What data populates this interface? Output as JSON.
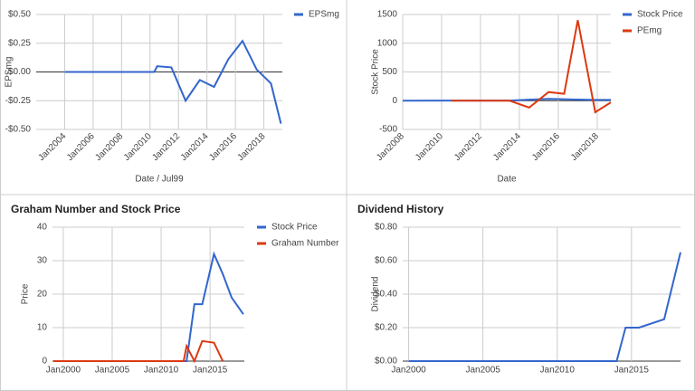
{
  "chart_data": [
    {
      "type": "line",
      "xlabel": "Date / Jul99",
      "ylabel": "EPSmg",
      "x": [
        2004,
        2010.3,
        2010.5,
        2011.5,
        2012.5,
        2013.5,
        2014.5,
        2015.5,
        2016.5,
        2017.5,
        2018.5,
        2019.2
      ],
      "series": [
        {
          "name": "EPSmg",
          "color": "#3366cc",
          "values": [
            0,
            0,
            0.05,
            0.04,
            -0.25,
            -0.07,
            -0.13,
            0.11,
            0.27,
            0.02,
            -0.1,
            -0.45
          ]
        }
      ],
      "xlim": [
        2002,
        2019.3
      ],
      "xticks": [
        {
          "value": 2004,
          "label": "Jan2004"
        },
        {
          "value": 2006,
          "label": "Jan2006"
        },
        {
          "value": 2008,
          "label": "Jan2008"
        },
        {
          "value": 2010,
          "label": "Jan2010"
        },
        {
          "value": 2012,
          "label": "Jan2012"
        },
        {
          "value": 2014,
          "label": "Jan2014"
        },
        {
          "value": 2016,
          "label": "Jan2016"
        },
        {
          "value": 2018,
          "label": "Jan2018"
        }
      ],
      "ylim": [
        -0.5,
        0.5
      ],
      "yticks": [
        {
          "value": -0.5,
          "label": "-$0.50"
        },
        {
          "value": -0.25,
          "label": "-$0.25"
        },
        {
          "value": 0,
          "label": "$0.00"
        },
        {
          "value": 0.25,
          "label": "$0.25"
        },
        {
          "value": 0.5,
          "label": "$0.50"
        }
      ],
      "grid": true
    },
    {
      "type": "line",
      "xlabel": "Date",
      "ylabel": "Stock Price",
      "x": [
        2008,
        2010.5,
        2013.5,
        2014.5,
        2015.5,
        2016.3,
        2017,
        2017.9,
        2018.7
      ],
      "series": [
        {
          "name": "Stock Price",
          "color": "#3366cc",
          "values": [
            0,
            1,
            2,
            17,
            32,
            26,
            19,
            14,
            14
          ]
        },
        {
          "name": "PEmg",
          "color": "#dc3912",
          "values": [
            null,
            0,
            0,
            -120,
            150,
            120,
            1400,
            -200,
            -30
          ]
        }
      ],
      "xlim": [
        2008,
        2018.7
      ],
      "xticks": [
        {
          "value": 2008,
          "label": "Jan2008"
        },
        {
          "value": 2010,
          "label": "Jan2010"
        },
        {
          "value": 2012,
          "label": "Jan2012"
        },
        {
          "value": 2014,
          "label": "Jan2014"
        },
        {
          "value": 2016,
          "label": "Jan2016"
        },
        {
          "value": 2018,
          "label": "Jan2018"
        }
      ],
      "ylim": [
        -500,
        1500
      ],
      "yticks": [
        -500,
        0,
        500,
        1000,
        1500
      ],
      "grid": true
    },
    {
      "type": "line",
      "title": "Graham Number and Stock Price",
      "ylabel": "Price",
      "x": [
        1999,
        2012.3,
        2012.6,
        2013.4,
        2014.2,
        2015.4,
        2016.3,
        2017.2,
        2018.4
      ],
      "series": [
        {
          "name": "Stock Price",
          "color": "#3366cc",
          "values": [
            0,
            0,
            0,
            17,
            17,
            32,
            26,
            19,
            14
          ]
        },
        {
          "name": "Graham Number",
          "color": "#dc3912",
          "values": [
            0,
            0,
            4.5,
            0,
            6,
            5.5,
            0,
            null,
            null
          ]
        }
      ],
      "xlim": [
        1998.9,
        2018.5
      ],
      "xticks": [
        {
          "value": 2000,
          "label": "Jan2000"
        },
        {
          "value": 2005,
          "label": "Jan2005"
        },
        {
          "value": 2010,
          "label": "Jan2010"
        },
        {
          "value": 2015,
          "label": "Jan2015"
        }
      ],
      "ylim": [
        0,
        40
      ],
      "yticks": [
        0,
        10,
        20,
        30,
        40
      ],
      "grid": true
    },
    {
      "type": "line",
      "title": "Dividend History",
      "ylabel": "Dividend",
      "x": [
        2000,
        2014,
        2014.6,
        2015.5,
        2017.2,
        2018.3
      ],
      "series": [
        {
          "name": "Dividend",
          "color": "#3366cc",
          "values": [
            0,
            0,
            0.2,
            0.2,
            0.25,
            0.65
          ]
        }
      ],
      "legend": false,
      "xlim": [
        1999.6,
        2018.3
      ],
      "xticks": [
        {
          "value": 2000,
          "label": "Jan2000"
        },
        {
          "value": 2005,
          "label": "Jan2005"
        },
        {
          "value": 2010,
          "label": "Jan2010"
        },
        {
          "value": 2015,
          "label": "Jan2015"
        }
      ],
      "ylim": [
        0,
        0.8
      ],
      "yticks": [
        {
          "value": 0,
          "label": "$0.00"
        },
        {
          "value": 0.2,
          "label": "$0.20"
        },
        {
          "value": 0.4,
          "label": "$0.40"
        },
        {
          "value": 0.6,
          "label": "$0.60"
        },
        {
          "value": 0.8,
          "label": "$0.80"
        }
      ],
      "grid": true
    }
  ]
}
